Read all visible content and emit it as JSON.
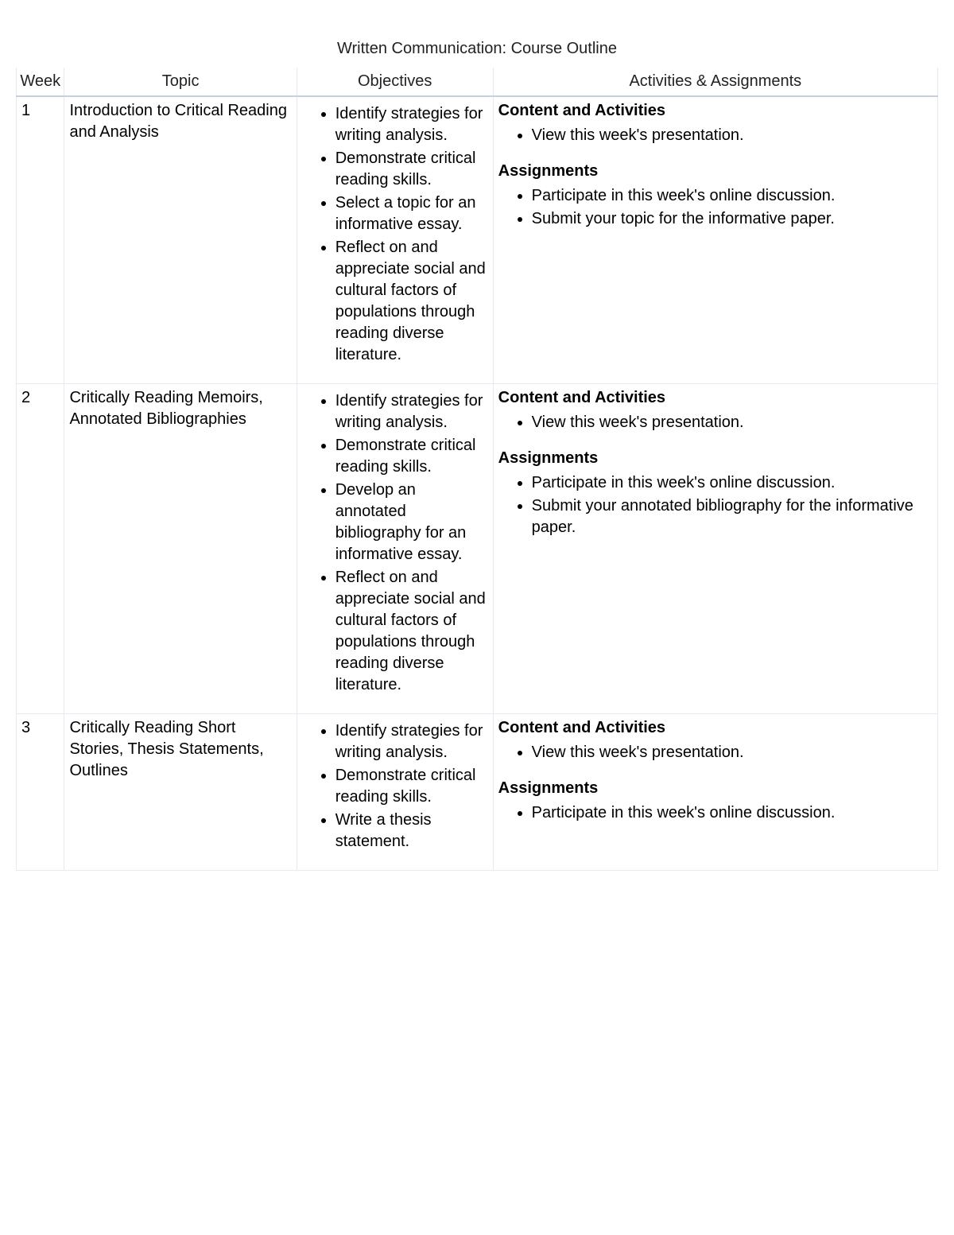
{
  "title": "Written Communication: Course Outline",
  "columns": [
    "Week",
    "Topic",
    "Objectives",
    "Activities & Assignments"
  ],
  "section_labels": {
    "content": "Content and Activities",
    "assignments": "Assignments"
  },
  "rows": [
    {
      "week": "1",
      "topic": "Introduction to Critical Reading and Analysis",
      "objectives": [
        "Identify strategies for writing analysis.",
        "Demonstrate critical reading skills.",
        "Select a topic for an informative essay.",
        "Reflect on and appreciate social and cultural factors of populations through reading diverse literature."
      ],
      "content": [
        "View this week's presentation."
      ],
      "assignments": [
        "Participate in this week's online discussion.",
        "Submit your topic for the informative paper."
      ]
    },
    {
      "week": "2",
      "topic": "Critically Reading Memoirs, Annotated Bibliographies",
      "objectives": [
        "Identify strategies for writing analysis.",
        "Demonstrate critical reading skills.",
        "Develop an annotated bibliography for an informative essay.",
        "Reflect on and appreciate social and cultural factors of populations through reading diverse literature."
      ],
      "content": [
        "View this week's presentation."
      ],
      "assignments": [
        "Participate in this week's online discussion.",
        "Submit your annotated bibliography for the informative paper."
      ]
    },
    {
      "week": "3",
      "topic": "Critically Reading Short Stories, Thesis Statements, Outlines",
      "objectives": [
        "Identify strategies for writing analysis.",
        "Demonstrate critical reading skills.",
        "Write a thesis statement."
      ],
      "content": [
        "View this week's presentation."
      ],
      "assignments": [
        "Participate in this week's online discussion."
      ]
    }
  ]
}
